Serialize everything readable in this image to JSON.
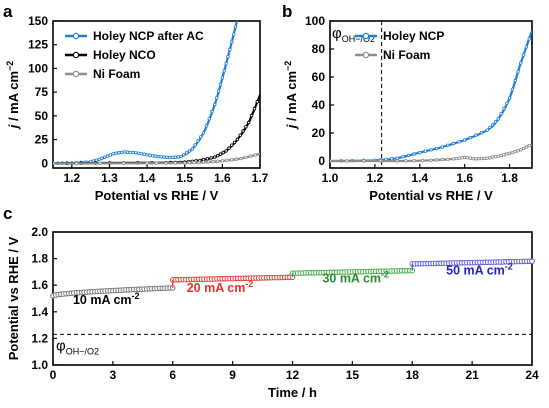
{
  "panels": {
    "a": {
      "letter": "a",
      "chart_data": {
        "type": "line",
        "xlabel": "Potential vs RHE / V",
        "ylabel": "j / mA cm-2",
        "ylabel_parts": {
          "sym": "j",
          "mid": " / mA cm",
          "sup": "−2"
        },
        "xlim": [
          1.15,
          1.7
        ],
        "ylim": [
          -5,
          150
        ],
        "xticks": [
          1.2,
          1.3,
          1.4,
          1.5,
          1.6,
          1.7
        ],
        "xtick_labels": [
          "1.2",
          "1.3",
          "1.4",
          "1.5",
          "1.6",
          "1.7"
        ],
        "yticks": [
          0,
          25,
          50,
          75,
          100,
          125,
          150
        ],
        "ytick_labels": [
          "0",
          "25",
          "50",
          "75",
          "100",
          "125",
          "150"
        ],
        "legend_position": "top-left",
        "series": [
          {
            "name": "Holey NCP after AC",
            "color": "#1f7fd6",
            "x": [
              1.15,
              1.2,
              1.25,
              1.28,
              1.31,
              1.34,
              1.37,
              1.4,
              1.43,
              1.46,
              1.49,
              1.52,
              1.55,
              1.58,
              1.6,
              1.62,
              1.64
            ],
            "y": [
              0,
              0.3,
              1.5,
              5,
              10,
              12,
              11,
              9,
              7,
              6,
              7,
              15,
              32,
              62,
              90,
              120,
              152
            ]
          },
          {
            "name": "Holey NCO",
            "color": "#000000",
            "x": [
              1.15,
              1.3,
              1.45,
              1.5,
              1.54,
              1.58,
              1.61,
              1.64,
              1.67,
              1.7
            ],
            "y": [
              0,
              0.3,
              0.6,
              1.2,
              3,
              6.5,
              13,
              25,
              43,
              72
            ]
          },
          {
            "name": "Ni Foam",
            "color": "#8c8c8c",
            "x": [
              1.15,
              1.4,
              1.5,
              1.55,
              1.6,
              1.65,
              1.7
            ],
            "y": [
              0,
              0,
              0.3,
              1,
              2.5,
              5,
              10
            ]
          }
        ]
      }
    },
    "b": {
      "letter": "b",
      "chart_data": {
        "type": "line",
        "xlabel": "Potential vs RHE / V",
        "ylabel": "j / mA cm-2",
        "ylabel_parts": {
          "sym": "j",
          "mid": " / mA cm",
          "sup": "−2"
        },
        "xlim": [
          1.0,
          1.9
        ],
        "ylim": [
          -5,
          100
        ],
        "xticks": [
          1.0,
          1.2,
          1.4,
          1.6,
          1.8
        ],
        "xtick_labels": [
          "1.0",
          "1.2",
          "1.4",
          "1.6",
          "1.8"
        ],
        "yticks": [
          0,
          20,
          40,
          60,
          80,
          100
        ],
        "ytick_labels": [
          "0",
          "20",
          "40",
          "60",
          "80",
          "100"
        ],
        "legend_position": "top-right",
        "vline": {
          "x": 1.23,
          "label": "φ",
          "sub": "OH−/O2"
        },
        "series": [
          {
            "name": "Holey NCP",
            "color": "#1f7fd6",
            "x": [
              1.0,
              1.2,
              1.3,
              1.4,
              1.5,
              1.6,
              1.7,
              1.75,
              1.8,
              1.85,
              1.9
            ],
            "y": [
              0,
              0.5,
              2,
              6,
              10,
              15,
              22,
              30,
              45,
              70,
              93
            ]
          },
          {
            "name": "Ni Foam",
            "color": "#8c8c8c",
            "x": [
              1.0,
              1.3,
              1.45,
              1.55,
              1.6,
              1.65,
              1.7,
              1.75,
              1.8,
              1.85,
              1.9
            ],
            "y": [
              0,
              0,
              0.5,
              1.5,
              2.5,
              1.5,
              2,
              3.5,
              5.5,
              8,
              12
            ]
          }
        ]
      }
    },
    "c": {
      "letter": "c",
      "chart_data": {
        "type": "scatter",
        "xlabel": "Time / h",
        "ylabel": "Potential vs RHE / V",
        "xlim": [
          0,
          24
        ],
        "ylim": [
          1.0,
          2.0
        ],
        "xticks": [
          0,
          3,
          6,
          9,
          12,
          15,
          18,
          21,
          24
        ],
        "xtick_labels": [
          "0",
          "3",
          "6",
          "9",
          "12",
          "15",
          "18",
          "21",
          "24"
        ],
        "yticks": [
          1.0,
          1.2,
          1.4,
          1.6,
          1.8,
          2.0
        ],
        "ytick_labels": [
          "1.0",
          "1.2",
          "1.4",
          "1.6",
          "1.8",
          "2.0"
        ],
        "hline": {
          "y": 1.23,
          "label": "φ",
          "sub": "OH−/O2"
        },
        "segments": [
          {
            "label_main": "10 mA cm",
            "label_sup": "-2",
            "color": "#000000",
            "marker_color": "#6e6e6e",
            "t_start": 0,
            "t_end": 6,
            "v_start": 1.52,
            "v_end": 1.58,
            "label_t": 1.0,
            "label_v": 1.46
          },
          {
            "label_main": "20 mA cm",
            "label_sup": "-2",
            "color": "#e8312f",
            "marker_color": "#e8312f",
            "t_start": 6,
            "t_end": 12,
            "v_start": 1.64,
            "v_end": 1.66,
            "label_t": 6.7,
            "label_v": 1.55
          },
          {
            "label_main": "30 mA cm",
            "label_sup": "-2",
            "color": "#2e8b2e",
            "marker_color": "#3aa83a",
            "t_start": 12,
            "t_end": 18,
            "v_start": 1.69,
            "v_end": 1.71,
            "label_t": 13.5,
            "label_v": 1.62
          },
          {
            "label_main": "50 mA cm",
            "label_sup": "-2",
            "color": "#2222bb",
            "marker_color": "#5555dd",
            "t_start": 18,
            "t_end": 24,
            "v_start": 1.76,
            "v_end": 1.78,
            "label_t": 19.7,
            "label_v": 1.68
          }
        ]
      }
    }
  }
}
